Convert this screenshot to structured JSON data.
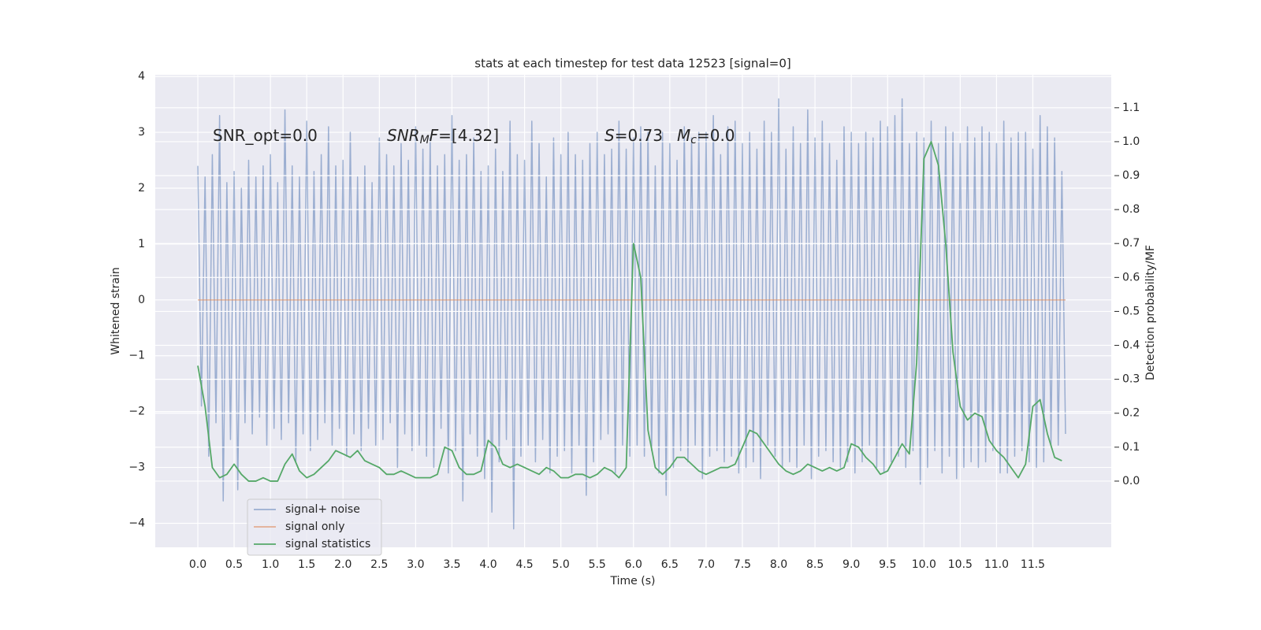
{
  "chart_data": {
    "type": "line",
    "title": "stats at each timestep for test data 12523 [signal=0]",
    "xlabel": "Time (s)",
    "ylabel": "Whitened strain",
    "y2label": "Detection probability/MF",
    "grid": true,
    "legend": "lower left",
    "xlim": [
      -0.586,
      12.58
    ],
    "ylim": [
      -4.43,
      4.03
    ],
    "y2lim": [
      -0.195,
      1.197
    ],
    "xticks": [
      {
        "value": 0,
        "label": "0.0"
      },
      0.5,
      {
        "value": 1,
        "label": "1.0"
      },
      1.5,
      {
        "value": 2,
        "label": "2.0"
      },
      2.5,
      {
        "value": 3,
        "label": "3.0"
      },
      3.5,
      {
        "value": 4,
        "label": "4.0"
      },
      4.5,
      {
        "value": 5,
        "label": "5.0"
      },
      5.5,
      {
        "value": 6,
        "label": "6.0"
      },
      6.5,
      {
        "value": 7,
        "label": "7.0"
      },
      7.5,
      {
        "value": 8,
        "label": "8.0"
      },
      8.5,
      {
        "value": 9,
        "label": "9.0"
      },
      9.5,
      {
        "value": 10,
        "label": "10.0"
      },
      10.5,
      {
        "value": 11,
        "label": "11.0"
      },
      11.5
    ],
    "yticks": [
      {
        "value": -4,
        "label": "−4"
      },
      {
        "value": -3,
        "label": "−3"
      },
      {
        "value": -2,
        "label": "−2"
      },
      {
        "value": -1,
        "label": "−1"
      },
      0,
      1,
      2,
      3,
      4
    ],
    "y2ticks": [
      {
        "value": 0,
        "label": "0.0"
      },
      0.1,
      0.2,
      0.3,
      0.4,
      0.5,
      0.6,
      0.7,
      0.8,
      0.9,
      {
        "value": 1,
        "label": "1.0"
      },
      1.1
    ],
    "annotations": [
      [
        {
          "text": "SNR_opt=0.0"
        }
      ],
      [
        {
          "text": "SNR",
          "italic": true
        },
        {
          "text": "M",
          "italic": true,
          "sub": true
        },
        {
          "text": "F",
          "italic": true
        },
        {
          "text": "=[4.32]"
        }
      ],
      [
        {
          "text": "S",
          "italic": true
        },
        {
          "text": "=0.73"
        }
      ],
      [
        {
          "text": "M",
          "italic": true
        },
        {
          "text": "c",
          "italic": true,
          "sub": true
        },
        {
          "text": "=0.0"
        }
      ]
    ],
    "series": [
      {
        "name": "signal+ noise",
        "color": "#4c72b0",
        "opacity": 0.5,
        "x": [
          0,
          0.05,
          0.1,
          0.15,
          0.2,
          0.25,
          0.3,
          0.35,
          0.4,
          0.45,
          0.5,
          0.55,
          0.6,
          0.65,
          0.7,
          0.75,
          0.8,
          0.85,
          0.9,
          0.95,
          1,
          1.05,
          1.1,
          1.15,
          1.2,
          1.25,
          1.3,
          1.35,
          1.4,
          1.45,
          1.5,
          1.55,
          1.6,
          1.65,
          1.7,
          1.75,
          1.8,
          1.85,
          1.9,
          1.95,
          2,
          2.05,
          2.1,
          2.15,
          2.2,
          2.25,
          2.3,
          2.35,
          2.4,
          2.45,
          2.5,
          2.55,
          2.6,
          2.65,
          2.7,
          2.75,
          2.8,
          2.85,
          2.9,
          2.95,
          3,
          3.05,
          3.1,
          3.15,
          3.2,
          3.25,
          3.3,
          3.35,
          3.4,
          3.45,
          3.5,
          3.55,
          3.6,
          3.65,
          3.7,
          3.75,
          3.8,
          3.85,
          3.9,
          3.95,
          4,
          4.05,
          4.1,
          4.15,
          4.2,
          4.25,
          4.3,
          4.35,
          4.4,
          4.45,
          4.5,
          4.55,
          4.6,
          4.65,
          4.7,
          4.75,
          4.8,
          4.85,
          4.9,
          4.95,
          5,
          5.05,
          5.1,
          5.15,
          5.2,
          5.25,
          5.3,
          5.35,
          5.4,
          5.45,
          5.5,
          5.55,
          5.6,
          5.65,
          5.7,
          5.75,
          5.8,
          5.85,
          5.9,
          5.95,
          6,
          6.05,
          6.1,
          6.15,
          6.2,
          6.25,
          6.3,
          6.35,
          6.4,
          6.45,
          6.5,
          6.55,
          6.6,
          6.65,
          6.7,
          6.75,
          6.8,
          6.85,
          6.9,
          6.95,
          7,
          7.05,
          7.1,
          7.15,
          7.2,
          7.25,
          7.3,
          7.35,
          7.4,
          7.45,
          7.5,
          7.55,
          7.6,
          7.65,
          7.7,
          7.75,
          7.8,
          7.85,
          7.9,
          7.95,
          8,
          8.05,
          8.1,
          8.15,
          8.2,
          8.25,
          8.3,
          8.35,
          8.4,
          8.45,
          8.5,
          8.55,
          8.6,
          8.65,
          8.7,
          8.75,
          8.8,
          8.85,
          8.9,
          8.95,
          9,
          9.05,
          9.1,
          9.15,
          9.2,
          9.25,
          9.3,
          9.35,
          9.4,
          9.45,
          9.5,
          9.55,
          9.6,
          9.65,
          9.7,
          9.75,
          9.8,
          9.85,
          9.9,
          9.95,
          10,
          10.05,
          10.1,
          10.15,
          10.2,
          10.25,
          10.3,
          10.35,
          10.4,
          10.45,
          10.5,
          10.55,
          10.6,
          10.65,
          10.7,
          10.75,
          10.8,
          10.85,
          10.9,
          10.95,
          11,
          11.05,
          11.1,
          11.15,
          11.2,
          11.25,
          11.3,
          11.35,
          11.4,
          11.45,
          11.5,
          11.55,
          11.6,
          11.65,
          11.7,
          11.75,
          11.8,
          11.85,
          11.9,
          11.95
        ],
        "values": [
          2.4,
          -1.9,
          2.2,
          -2.8,
          2.6,
          -2.2,
          3.3,
          -3.6,
          2.1,
          -2.5,
          2.3,
          -3.4,
          2.0,
          -2.2,
          2.5,
          -2.4,
          2.2,
          -2.1,
          2.4,
          -2.6,
          2.6,
          -2.3,
          2.1,
          -2.5,
          3.4,
          -2.2,
          2.4,
          -2.9,
          2.2,
          -2.4,
          3.2,
          -2.7,
          2.3,
          -2.5,
          2.6,
          -2.2,
          3.1,
          -2.6,
          2.4,
          -2.3,
          2.5,
          -2.8,
          3.0,
          -2.4,
          2.2,
          -2.7,
          2.4,
          -2.3,
          2.1,
          -2.6,
          2.9,
          -2.5,
          2.6,
          -2.2,
          2.4,
          -3.0,
          2.8,
          -2.4,
          2.5,
          -2.7,
          3.1,
          -2.6,
          2.7,
          -2.8,
          2.9,
          -3.0,
          2.4,
          -2.3,
          2.6,
          -3.1,
          3.3,
          -2.7,
          2.5,
          -3.6,
          2.6,
          -2.4,
          2.9,
          -2.8,
          2.3,
          -3.2,
          2.4,
          -3.8,
          2.7,
          -2.9,
          2.3,
          -2.5,
          3.2,
          -4.1,
          2.6,
          -2.8,
          2.5,
          -2.6,
          3.2,
          -2.9,
          2.8,
          -2.5,
          2.2,
          -3.1,
          2.9,
          -2.8,
          2.6,
          -2.7,
          3.0,
          -3.1,
          2.6,
          -2.6,
          2.5,
          -3.5,
          2.8,
          -2.9,
          3.0,
          -2.5,
          2.6,
          -2.4,
          2.7,
          -3.1,
          3.2,
          -2.6,
          2.7,
          -2.8,
          2.9,
          -2.6,
          3.1,
          -2.8,
          3.0,
          -2.7,
          2.4,
          -3.1,
          3.0,
          -3.5,
          2.8,
          -3.0,
          2.5,
          -2.7,
          3.1,
          -2.9,
          2.9,
          -2.6,
          3.0,
          -3.2,
          3.0,
          -2.8,
          3.3,
          -2.7,
          2.6,
          -2.9,
          3.1,
          -2.8,
          3.2,
          -3.1,
          2.8,
          -3.0,
          3.0,
          -2.9,
          2.7,
          -3.2,
          3.2,
          -2.6,
          3.0,
          -2.8,
          3.6,
          -3.0,
          2.7,
          -2.9,
          3.1,
          -3.0,
          2.8,
          -2.6,
          3.4,
          -3.2,
          2.9,
          -2.8,
          3.2,
          -2.7,
          2.8,
          -2.9,
          2.5,
          -3.0,
          3.1,
          -2.9,
          3.0,
          -3.1,
          2.8,
          -2.9,
          3.0,
          -2.6,
          2.9,
          -3.0,
          3.2,
          -3.1,
          3.1,
          -2.9,
          3.3,
          -2.8,
          3.6,
          -3.0,
          2.8,
          -2.7,
          3.0,
          -3.3,
          2.9,
          -3.0,
          3.2,
          -2.7,
          2.8,
          -3.1,
          3.1,
          -2.8,
          3.0,
          -3.2,
          2.8,
          -3.0,
          3.1,
          -2.9,
          2.9,
          -3.0,
          3.1,
          -2.9,
          3.0,
          -2.7,
          2.8,
          -3.1,
          3.2,
          -3.1,
          2.9,
          -2.8,
          3.0,
          -2.7,
          3.0,
          -2.9,
          2.7,
          -3.0,
          3.3,
          -2.9,
          3.1,
          -2.6,
          2.9,
          -2.6,
          2.3,
          -2.4
        ]
      },
      {
        "name": "signal only",
        "color": "#dd8452",
        "opacity": 0.6,
        "x": [
          0,
          11.95
        ],
        "values": [
          0,
          0
        ]
      },
      {
        "name": "signal statistics",
        "color": "#55a868",
        "opacity": 1,
        "axis": "y2",
        "x": [
          0,
          0.1,
          0.2,
          0.3,
          0.4,
          0.5,
          0.6,
          0.7,
          0.8,
          0.9,
          1,
          1.1,
          1.2,
          1.3,
          1.4,
          1.5,
          1.6,
          1.7,
          1.8,
          1.9,
          2,
          2.1,
          2.2,
          2.3,
          2.4,
          2.5,
          2.6,
          2.7,
          2.8,
          2.9,
          3,
          3.1,
          3.2,
          3.3,
          3.4,
          3.5,
          3.6,
          3.7,
          3.8,
          3.9,
          4,
          4.1,
          4.2,
          4.3,
          4.4,
          4.5,
          4.6,
          4.7,
          4.8,
          4.9,
          5,
          5.1,
          5.2,
          5.3,
          5.4,
          5.5,
          5.6,
          5.7,
          5.8,
          5.9,
          6,
          6.1,
          6.2,
          6.3,
          6.4,
          6.5,
          6.6,
          6.7,
          6.8,
          6.9,
          7,
          7.1,
          7.2,
          7.3,
          7.4,
          7.5,
          7.6,
          7.7,
          7.8,
          7.9,
          8,
          8.1,
          8.2,
          8.3,
          8.4,
          8.5,
          8.6,
          8.7,
          8.8,
          8.9,
          9,
          9.1,
          9.2,
          9.3,
          9.4,
          9.5,
          9.6,
          9.7,
          9.8,
          9.9,
          10,
          10.1,
          10.2,
          10.3,
          10.4,
          10.5,
          10.6,
          10.7,
          10.8,
          10.9,
          11,
          11.1,
          11.2,
          11.3,
          11.4,
          11.5,
          11.6,
          11.7,
          11.8,
          11.9
        ],
        "values": [
          0.34,
          0.22,
          0.04,
          0.01,
          0.02,
          0.05,
          0.02,
          0.0,
          0.0,
          0.01,
          0.0,
          0.0,
          0.05,
          0.08,
          0.03,
          0.01,
          0.02,
          0.04,
          0.06,
          0.09,
          0.08,
          0.07,
          0.09,
          0.06,
          0.05,
          0.04,
          0.02,
          0.02,
          0.03,
          0.02,
          0.01,
          0.01,
          0.01,
          0.02,
          0.1,
          0.09,
          0.04,
          0.02,
          0.02,
          0.03,
          0.12,
          0.1,
          0.05,
          0.04,
          0.05,
          0.04,
          0.03,
          0.02,
          0.04,
          0.03,
          0.01,
          0.01,
          0.02,
          0.02,
          0.01,
          0.02,
          0.04,
          0.03,
          0.01,
          0.04,
          0.7,
          0.6,
          0.15,
          0.04,
          0.02,
          0.04,
          0.07,
          0.07,
          0.05,
          0.03,
          0.02,
          0.03,
          0.04,
          0.04,
          0.05,
          0.1,
          0.15,
          0.14,
          0.11,
          0.08,
          0.05,
          0.03,
          0.02,
          0.03,
          0.05,
          0.04,
          0.03,
          0.04,
          0.03,
          0.04,
          0.11,
          0.1,
          0.07,
          0.05,
          0.02,
          0.03,
          0.07,
          0.11,
          0.08,
          0.35,
          0.95,
          1.0,
          0.93,
          0.7,
          0.38,
          0.22,
          0.18,
          0.2,
          0.19,
          0.12,
          0.09,
          0.07,
          0.04,
          0.01,
          0.05,
          0.22,
          0.24,
          0.14,
          0.07,
          0.06
        ]
      }
    ]
  }
}
